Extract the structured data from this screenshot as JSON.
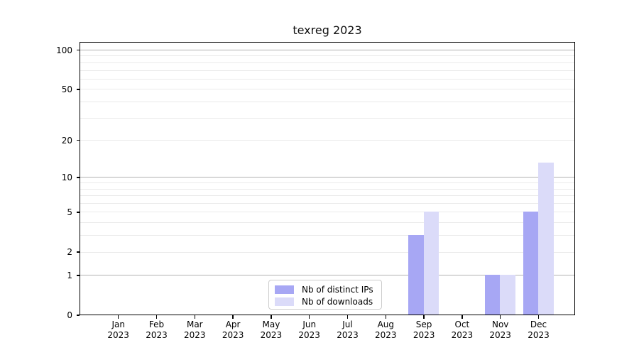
{
  "chart_data": {
    "type": "bar",
    "title": "texreg 2023",
    "x": {
      "categories": [
        "Jan",
        "Feb",
        "Mar",
        "Apr",
        "May",
        "Jun",
        "Jul",
        "Aug",
        "Sep",
        "Oct",
        "Nov",
        "Dec"
      ],
      "year": "2023"
    },
    "series": [
      {
        "name": "Nb of distinct IPs",
        "color": "#a7a7f4",
        "values": [
          0,
          0,
          0,
          0,
          0,
          0,
          0,
          0,
          3,
          0,
          1,
          5
        ]
      },
      {
        "name": "Nb of downloads",
        "color": "#dbdbf9",
        "values": [
          0,
          0,
          0,
          0,
          0,
          0,
          0,
          0,
          5,
          0,
          1,
          13
        ]
      }
    ],
    "yscale": "log1p",
    "ylim": [
      0,
      115
    ],
    "y_ticks": [
      100,
      50,
      20,
      10,
      5,
      2,
      1,
      0
    ],
    "grid_major_values": [
      1,
      10,
      100
    ],
    "grid_minor_values": [
      2,
      3,
      4,
      5,
      6,
      7,
      8,
      9,
      20,
      30,
      40,
      50,
      60,
      70,
      80,
      90
    ],
    "legend_position": "lower center",
    "colors": {
      "grid_major": "#b0b0b0",
      "grid_minor": "#eaeaea",
      "spine": "#000000",
      "text": "#000000",
      "background": "#ffffff"
    }
  }
}
